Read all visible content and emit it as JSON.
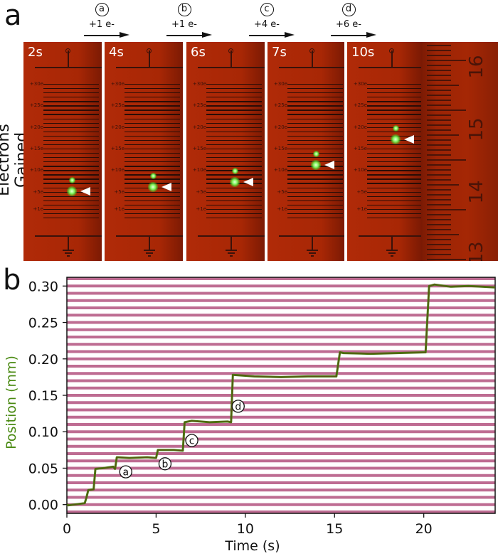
{
  "panel_a": {
    "letter": "a",
    "ylabel": "Electrons Gained",
    "steps": [
      {
        "marker": "a",
        "label": "+1 e-"
      },
      {
        "marker": "b",
        "label": "+1 e-"
      },
      {
        "marker": "c",
        "label": "+4 e-"
      },
      {
        "marker": "d",
        "label": "+6 e-"
      }
    ],
    "frames": [
      {
        "time": "2s",
        "charge": 5
      },
      {
        "time": "4s",
        "charge": 6
      },
      {
        "time": "6s",
        "charge": 7
      },
      {
        "time": "7s",
        "charge": 11
      },
      {
        "time": "10s",
        "charge": 17
      }
    ],
    "scale_labels": [
      "+30e",
      "+25e",
      "+20e",
      "+15e",
      "+10e",
      "+5e",
      "+1e"
    ],
    "ruler_numbers": [
      "16",
      "15",
      "14",
      "13"
    ]
  },
  "panel_b": {
    "letter": "b"
  },
  "chart_data": {
    "type": "line",
    "title": "",
    "xlabel": "Time (s)",
    "ylabel": "Position (mm)",
    "xlim": [
      0,
      24
    ],
    "ylim": [
      -0.012,
      0.312
    ],
    "xticks": [
      0,
      5,
      10,
      15,
      20
    ],
    "yticks": [
      0.0,
      0.05,
      0.1,
      0.15,
      0.2,
      0.25,
      0.3
    ],
    "ytick_labels": [
      "0.00",
      "0.05",
      "0.10",
      "0.15",
      "0.20",
      "0.25",
      "0.30"
    ],
    "series": [
      {
        "name": "Position",
        "color": "#4a7a12",
        "x": [
          0,
          0.1,
          1.0,
          1.1,
          1.2,
          1.5,
          1.6,
          2.0,
          2.6,
          2.7,
          2.8,
          3.5,
          4.5,
          5.0,
          5.1,
          6.0,
          6.5,
          6.6,
          7.0,
          8.0,
          9.0,
          9.2,
          9.3,
          10.5,
          12.0,
          13.5,
          15.1,
          15.3,
          15.5,
          17.0,
          18.5,
          20.1,
          20.3,
          20.6,
          21.5,
          22.5,
          24.0
        ],
        "values": [
          0.0,
          -0.001,
          0.002,
          0.01,
          0.02,
          0.021,
          0.049,
          0.05,
          0.052,
          0.049,
          0.065,
          0.064,
          0.065,
          0.064,
          0.075,
          0.075,
          0.074,
          0.113,
          0.115,
          0.113,
          0.114,
          0.113,
          0.178,
          0.176,
          0.175,
          0.176,
          0.176,
          0.209,
          0.208,
          0.207,
          0.208,
          0.209,
          0.3,
          0.302,
          0.299,
          0.3,
          0.298
        ]
      }
    ],
    "annotations": [
      {
        "text": "a",
        "x": 3.3,
        "y": 0.045
      },
      {
        "text": "b",
        "x": 5.5,
        "y": 0.056
      },
      {
        "text": "c",
        "x": 7.0,
        "y": 0.088
      },
      {
        "text": "d",
        "x": 9.6,
        "y": 0.135
      }
    ],
    "background_lines_spacing": 0.01,
    "background_line_color": "#b75c86",
    "ylabel_color": "#4a8a12",
    "grid": false,
    "legend": "none"
  }
}
